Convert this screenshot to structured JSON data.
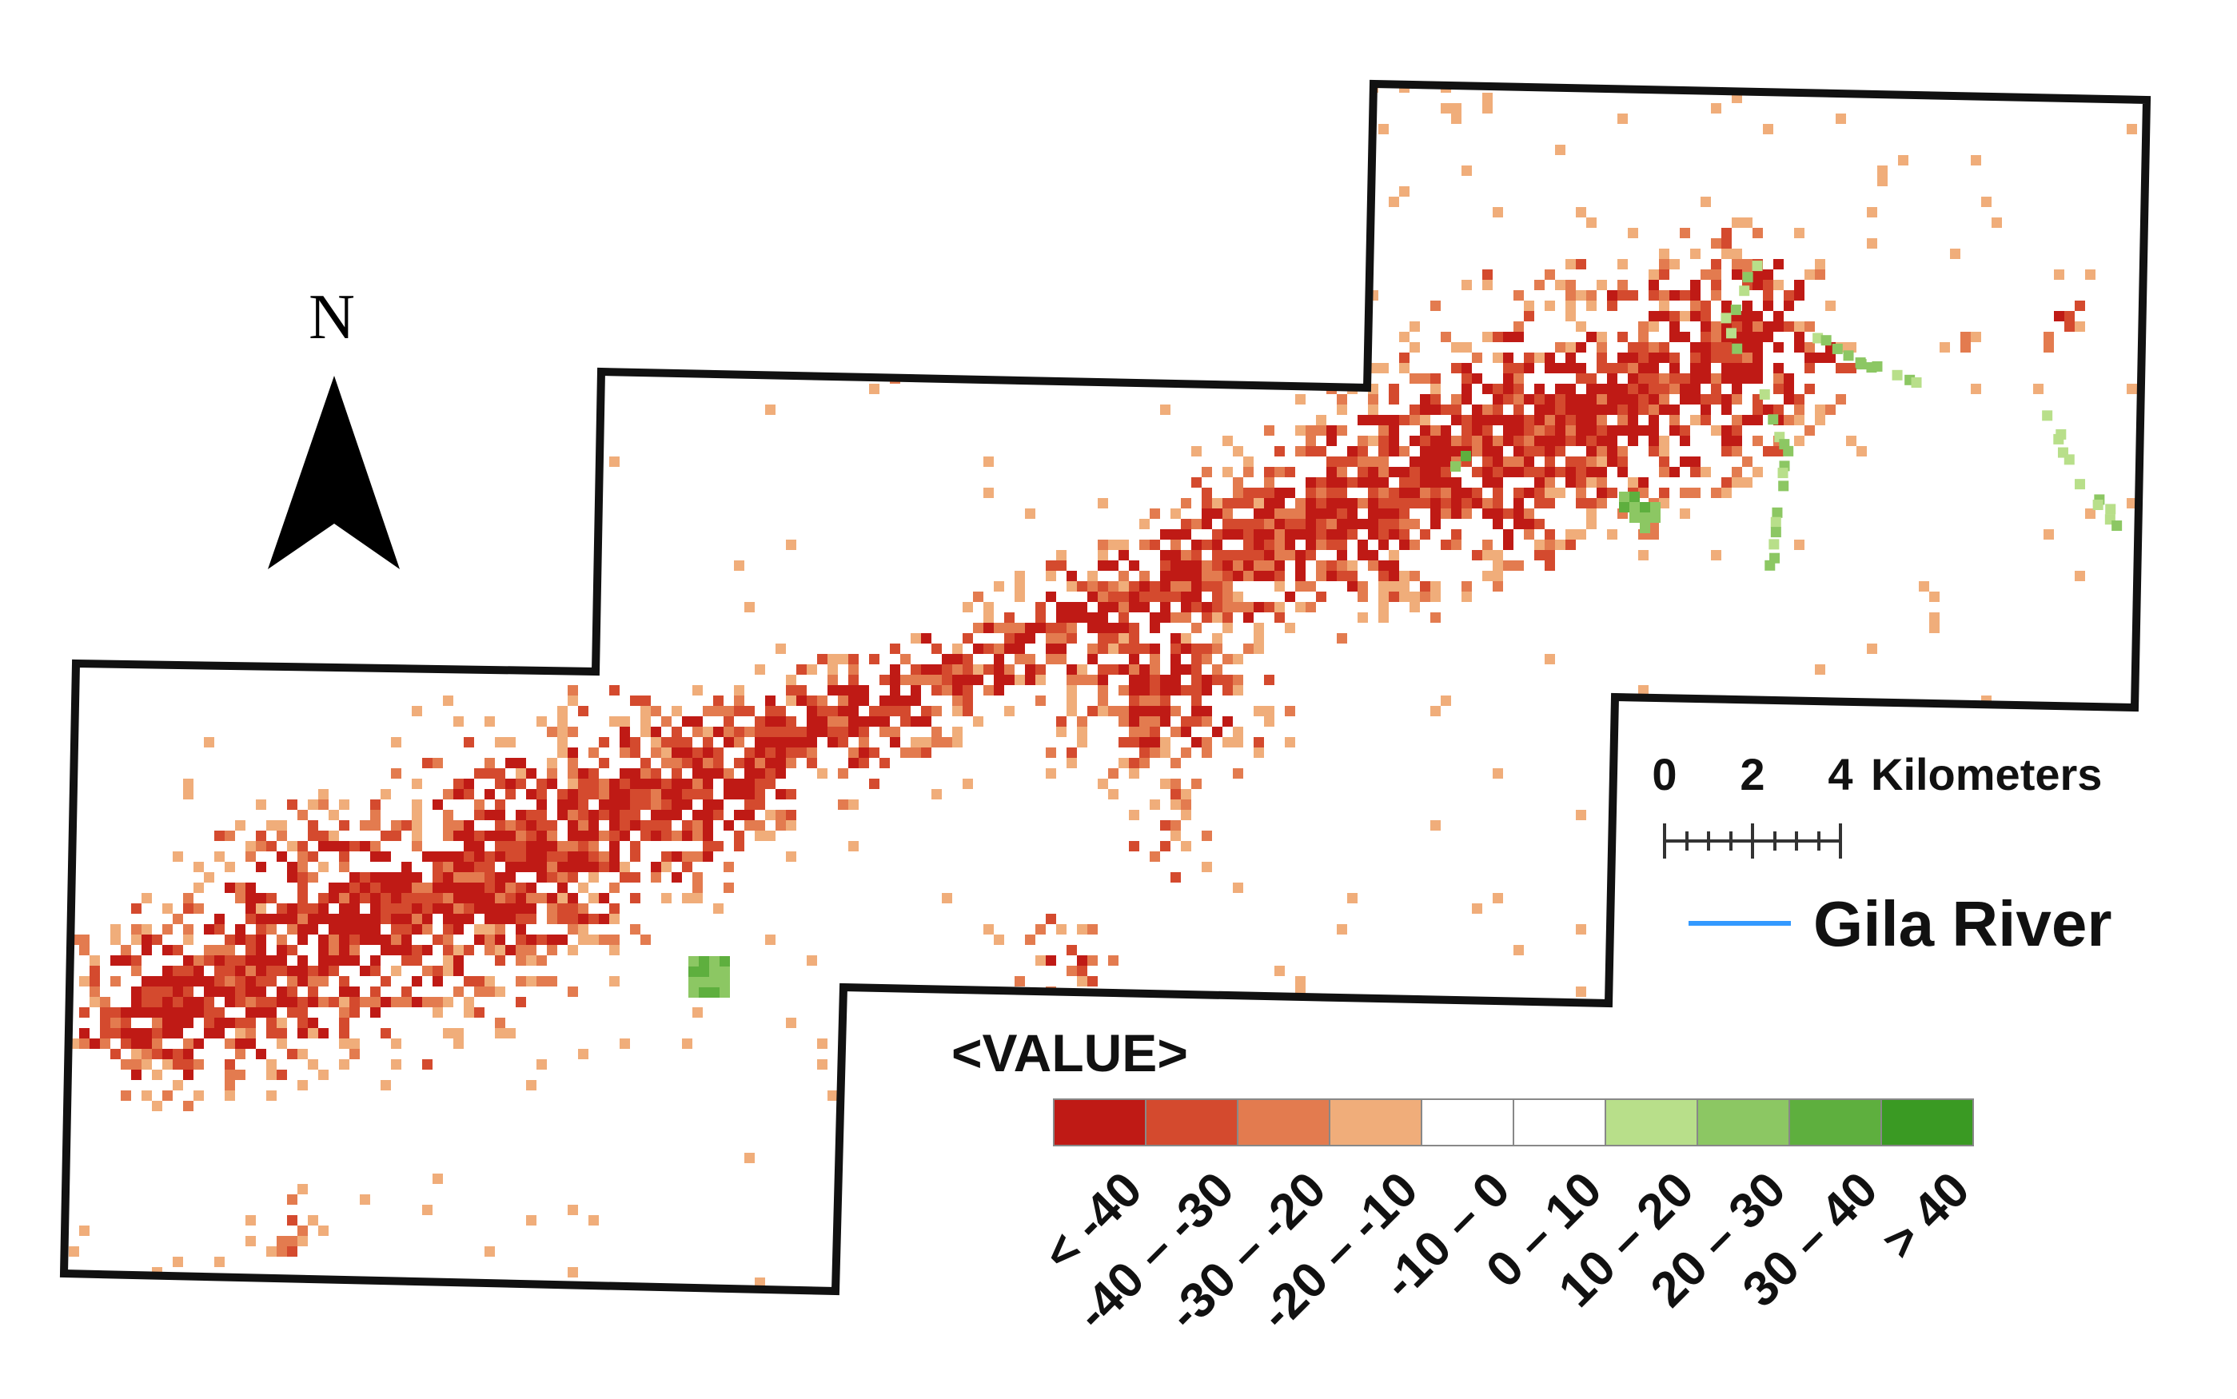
{
  "north_arrow": {
    "label": "N"
  },
  "scale_bar": {
    "ticks": [
      "0",
      "2",
      "4"
    ],
    "unit": "Kilometers"
  },
  "river_legend": {
    "label": "Gila River",
    "color": "#3399ff"
  },
  "legend": {
    "title": "<VALUE>",
    "classes": [
      {
        "label": "< -40",
        "color": "#bf1a15"
      },
      {
        "label": "-40 – -30",
        "color": "#d44a2e"
      },
      {
        "label": "-30 – -20",
        "color": "#e37b4f"
      },
      {
        "label": "-20 – -10",
        "color": "#f0ad7a"
      },
      {
        "label": "-10 – 0",
        "color": "#ffffff"
      },
      {
        "label": "0 – 10",
        "color": "#ffffff"
      },
      {
        "label": "10 – 20",
        "color": "#b8df8a"
      },
      {
        "label": "20 – 30",
        "color": "#8cc763"
      },
      {
        "label": "30 – 40",
        "color": "#5eaf3e"
      },
      {
        "label": "> 40",
        "color": "#3a9a23"
      }
    ]
  }
}
